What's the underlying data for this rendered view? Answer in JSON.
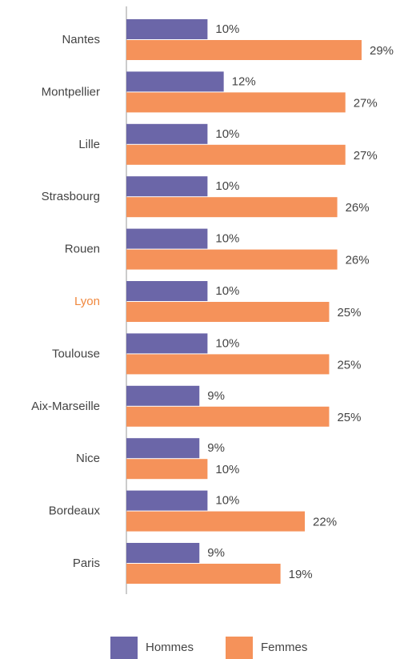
{
  "chart_data": {
    "type": "bar",
    "orientation": "horizontal",
    "categories": [
      "Nantes",
      "Montpellier",
      "Lille",
      "Strasbourg",
      "Rouen",
      "Lyon",
      "Toulouse",
      "Aix-Marseille",
      "Nice",
      "Bordeaux",
      "Paris"
    ],
    "category_colors": [
      "#444444",
      "#444444",
      "#444444",
      "#444444",
      "#444444",
      "#f0883e",
      "#444444",
      "#444444",
      "#444444",
      "#444444",
      "#444444"
    ],
    "series": [
      {
        "name": "Hommes",
        "color": "#6b66a8",
        "values": [
          10,
          12,
          10,
          10,
          10,
          10,
          10,
          9,
          9,
          10,
          9
        ],
        "value_labels": [
          "10%",
          "12%",
          "10%",
          "10%",
          "10%",
          "10%",
          "10%",
          "9%",
          "9%",
          "10%",
          "9%"
        ]
      },
      {
        "name": "Femmes",
        "color": "#f5925a",
        "values": [
          29,
          27,
          27,
          26,
          26,
          25,
          25,
          25,
          10,
          22,
          19
        ],
        "value_labels": [
          "29%",
          "27%",
          "27%",
          "26%",
          "26%",
          "25%",
          "25%",
          "25%",
          "10%",
          "22%",
          "19%"
        ]
      }
    ],
    "legend": "bottom"
  }
}
